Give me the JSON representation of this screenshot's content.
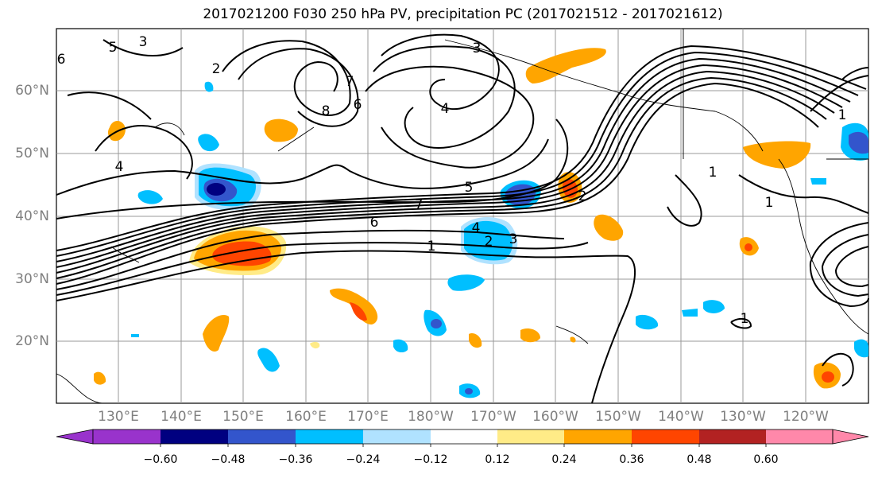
{
  "title": "2017021200 F030 250 hPa PV, precipitation PC (2017021512 - 2017021612)",
  "lat_labels": [
    "60°N",
    "50°N",
    "40°N",
    "30°N",
    "20°N"
  ],
  "lon_labels": [
    "130°E",
    "140°E",
    "150°E",
    "160°E",
    "170°E",
    "180°W",
    "170°W",
    "160°W",
    "150°W",
    "140°W",
    "130°W",
    "120°W"
  ],
  "colorbar": {
    "ticks": [
      "−0.60",
      "−0.48",
      "−0.36",
      "−0.24",
      "−0.12",
      "0.12",
      "0.24",
      "0.36",
      "0.48",
      "0.60"
    ],
    "colors": [
      "#9933cc",
      "#000080",
      "#3355cc",
      "#00bfff",
      "#b0e2ff",
      "#ffffff",
      "#ffeb87",
      "#ffa500",
      "#ff4500",
      "#b22222",
      "#ff88aa"
    ]
  },
  "contour_labels": [
    "7",
    "6",
    "1",
    "2",
    "3",
    "4",
    "5",
    "6",
    "7",
    "8",
    "2",
    "3",
    "4",
    "1",
    "1",
    "1",
    "6",
    "5",
    "4",
    "3",
    "2",
    "1"
  ]
}
